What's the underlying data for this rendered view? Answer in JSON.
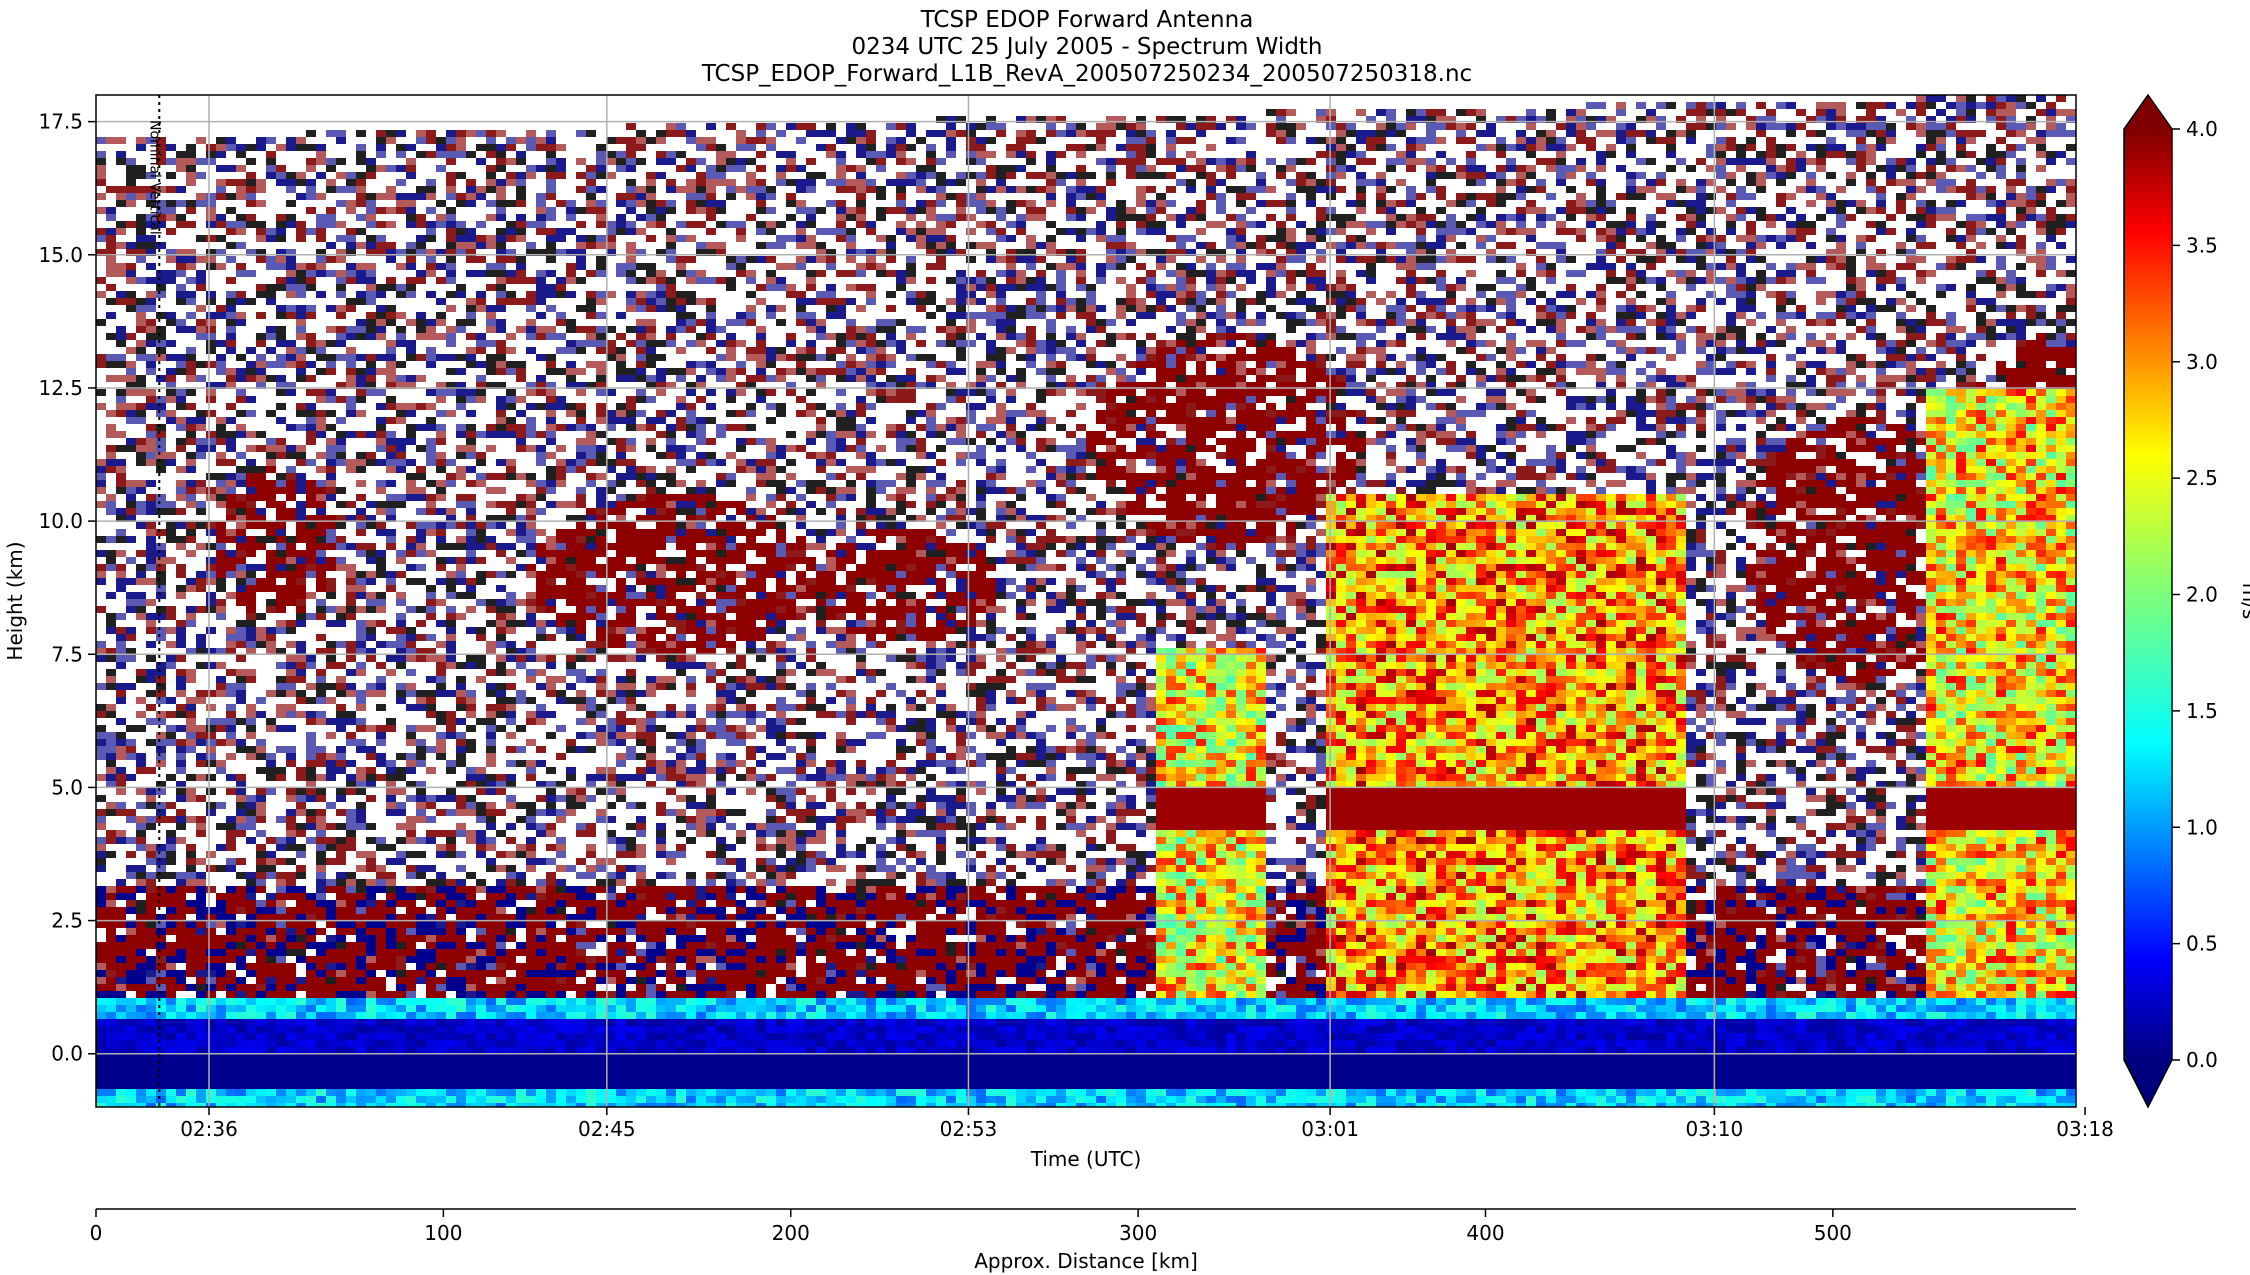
{
  "chart_data": {
    "type": "heatmap",
    "title_lines": [
      "TCSP EDOP Forward Antenna",
      "0234 UTC 25 July 2005 - Spectrum Width",
      "TCSP_EDOP_Forward_L1B_RevA_200507250234_200507250318.nc"
    ],
    "xlabel": "Time (UTC)",
    "ylabel": "Height (km)",
    "x_ticks": [
      "02:36",
      "02:45",
      "02:53",
      "03:01",
      "03:10",
      "03:18"
    ],
    "x_tick_minutes": [
      2.0,
      10.8,
      18.8,
      26.8,
      35.3,
      43.5
    ],
    "x_range_minutes": [
      -0.5,
      43.3
    ],
    "y_ticks": [
      0.0,
      2.5,
      5.0,
      7.5,
      10.0,
      12.5,
      15.0,
      17.5
    ],
    "y_tick_labels": [
      "0.0",
      "2.5",
      "5.0",
      "7.5",
      "10.0",
      "12.5",
      "15.0",
      "17.5"
    ],
    "ylim": [
      -1.0,
      18.0
    ],
    "grid": true,
    "secondary_axis": {
      "label": "Approx. Distance [km]",
      "ticks": [
        0,
        100,
        200,
        300,
        400,
        500
      ],
      "range": [
        0,
        570
      ]
    },
    "colorbar": {
      "label": "m/s",
      "min": 0.0,
      "max": 4.0,
      "ticks": [
        0.0,
        0.5,
        1.0,
        1.5,
        2.0,
        2.5,
        3.0,
        3.5,
        4.0
      ],
      "tick_labels": [
        "0.0",
        "0.5",
        "1.0",
        "1.5",
        "2.0",
        "2.5",
        "3.0",
        "3.5",
        "4.0"
      ],
      "extend": "both",
      "colormap": "jet"
    },
    "annotation": {
      "text": "Nominal Vertical",
      "position_minutes": 0.9
    },
    "features": {
      "surface_band_km": [
        -1.0,
        1.0
      ],
      "melting_layer_km": [
        3.5,
        5.0
      ],
      "cloud_top_km": 3.2,
      "convective_columns": [
        {
          "t_start": 23.0,
          "t_end": 25.4,
          "z_bottom": 0.8,
          "z_top": 7.6,
          "value": 2.6
        },
        {
          "t_start": 26.6,
          "t_end": 34.6,
          "z_bottom": 0.5,
          "z_top": 10.5,
          "value": 3.0
        },
        {
          "t_start": 40.0,
          "t_end": 43.3,
          "z_bottom": 0.5,
          "z_top": 12.5,
          "value": 2.7
        }
      ],
      "upper_anvils": [
        {
          "t_center": 3.5,
          "z_center": 9.6,
          "width": 1.4,
          "height": 1.4
        },
        {
          "t_center": 12.3,
          "z_center": 9.0,
          "width": 3.2,
          "height": 1.5
        },
        {
          "t_center": 17.4,
          "z_center": 8.8,
          "width": 2.0,
          "height": 1.1
        },
        {
          "t_center": 24.5,
          "z_center": 11.5,
          "width": 3.0,
          "height": 2.0
        },
        {
          "t_center": 38.5,
          "z_center": 9.5,
          "width": 2.5,
          "height": 2.5
        },
        {
          "t_center": 42.5,
          "z_center": 11.5,
          "width": 1.6,
          "height": 2.0
        }
      ]
    }
  }
}
